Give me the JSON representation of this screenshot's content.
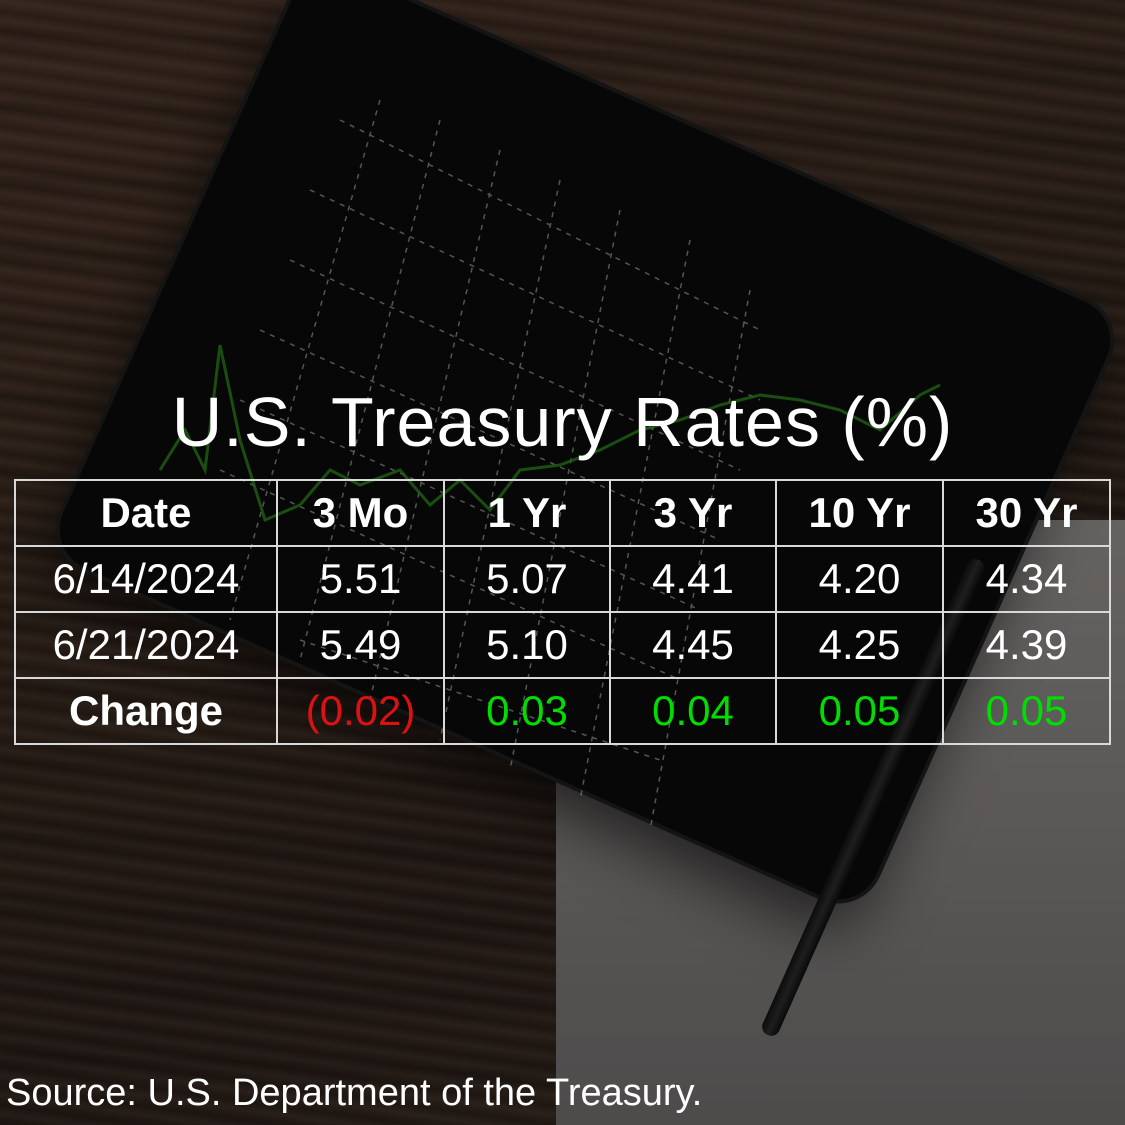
{
  "title": "U.S. Treasury Rates (%)",
  "source": "Source: U.S. Department of the Treasury.",
  "colors": {
    "positive": "#00dd00",
    "negative": "#dd1111",
    "text": "#ffffff",
    "grid_border": "#d9d9d9"
  },
  "chart_data": {
    "type": "table",
    "title": "U.S. Treasury Rates (%)",
    "columns": [
      "Date",
      "3 Mo",
      "1 Yr",
      "3 Yr",
      "10 Yr",
      "30 Yr"
    ],
    "rows": [
      {
        "label": "6/14/2024",
        "values": [
          "5.51",
          "5.07",
          "4.41",
          "4.20",
          "4.34"
        ],
        "kind": "plain"
      },
      {
        "label": "6/21/2024",
        "values": [
          "5.49",
          "5.10",
          "4.45",
          "4.25",
          "4.39"
        ],
        "kind": "plain"
      },
      {
        "label": "Change",
        "values": [
          "(0.02)",
          "0.03",
          "0.04",
          "0.05",
          "0.05"
        ],
        "kind": "change"
      }
    ]
  }
}
